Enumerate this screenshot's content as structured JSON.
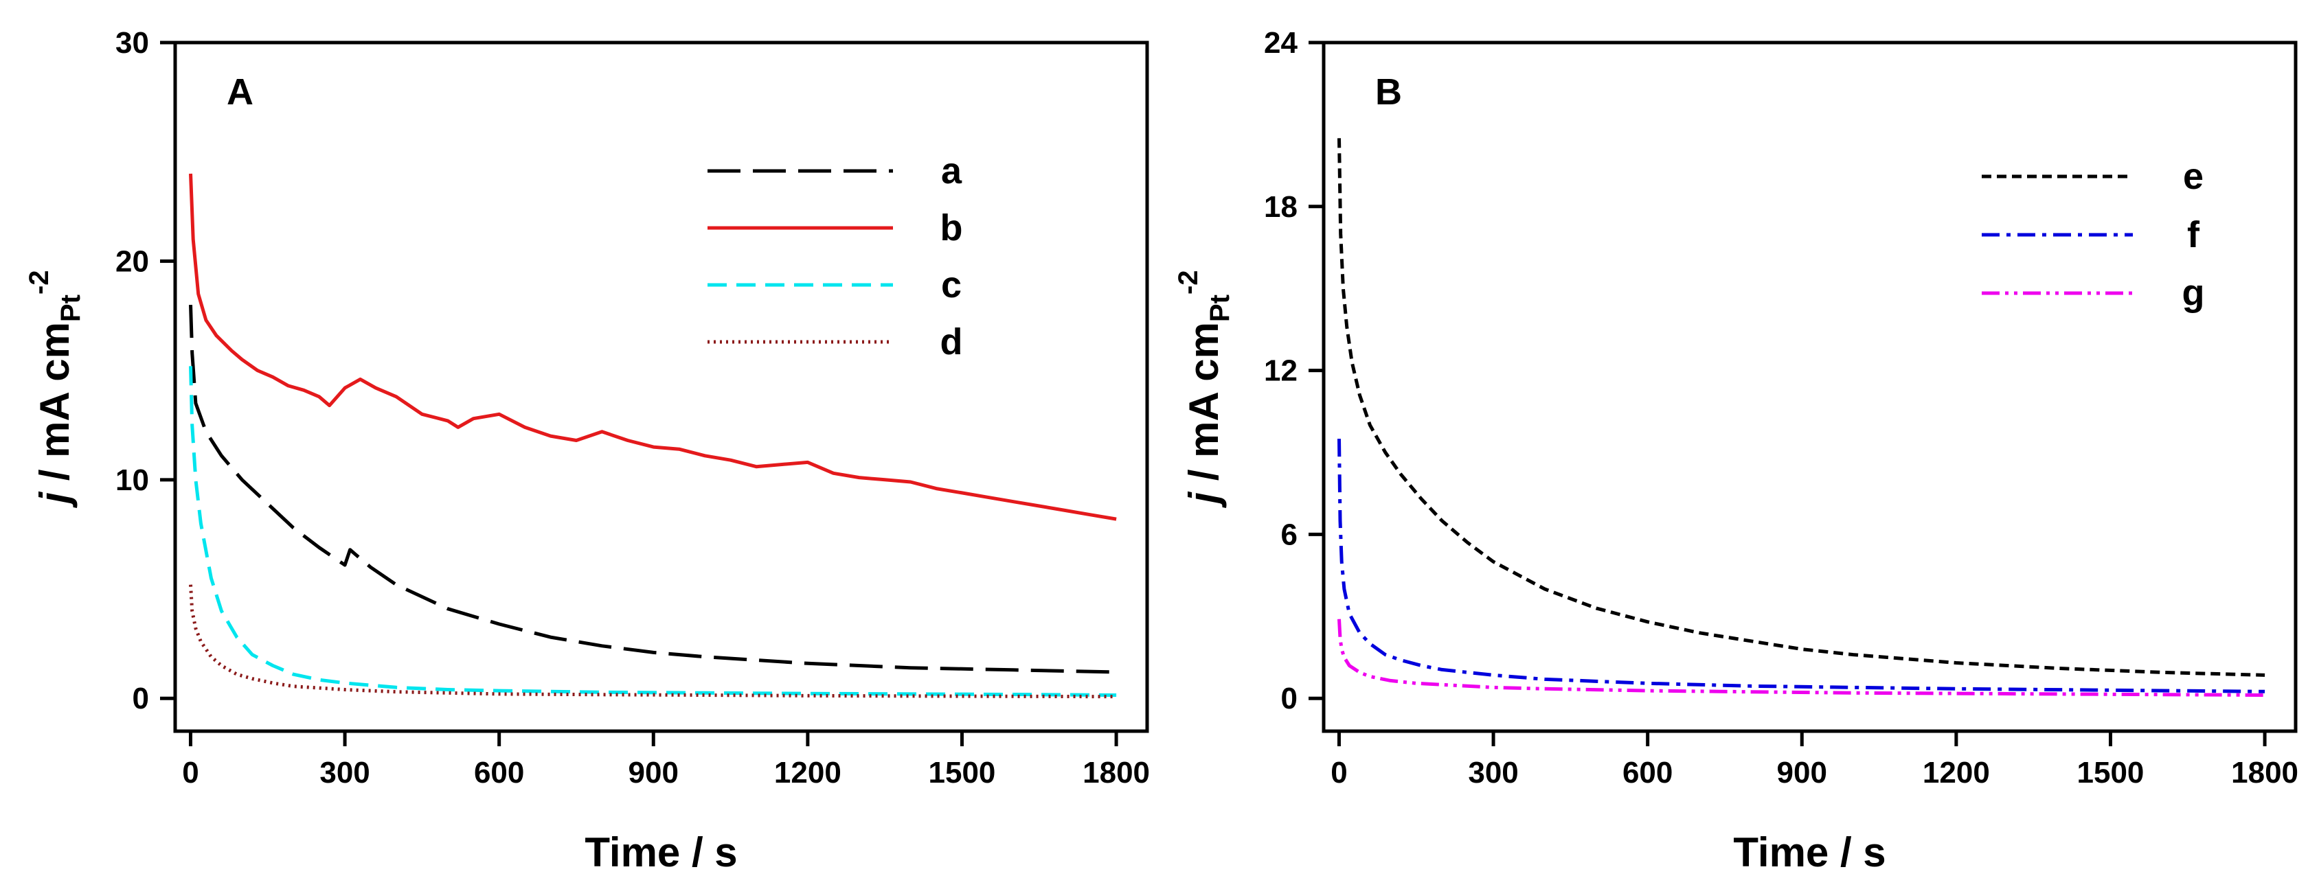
{
  "chart_data": [
    {
      "type": "line",
      "panel_label": "A",
      "xlabel": "Time / s",
      "ylabel": {
        "italic": "j",
        "text": " / mA cm",
        "sub": "Pt",
        "sup": "-2"
      },
      "xlim": [
        -30,
        1860
      ],
      "ylim": [
        -1.5,
        30
      ],
      "xticks": [
        0,
        300,
        600,
        900,
        1200,
        1500,
        1800
      ],
      "yticks": [
        0,
        10,
        20,
        30
      ],
      "xtick_labels": [
        "0",
        "300",
        "600",
        "900",
        "1200",
        "1500",
        "1800"
      ],
      "ytick_labels": [
        "0",
        "10",
        "20",
        "30"
      ],
      "legend_position": "top-right",
      "series": [
        {
          "name": "a",
          "color": "#000000",
          "dash": "long-dash",
          "x": [
            0,
            3,
            10,
            30,
            60,
            100,
            150,
            200,
            250,
            300,
            310,
            320,
            350,
            400,
            500,
            600,
            700,
            800,
            900,
            1000,
            1200,
            1400,
            1600,
            1800
          ],
          "y": [
            18,
            15.8,
            13.5,
            12.2,
            11.1,
            10.0,
            8.9,
            7.8,
            6.9,
            6.1,
            6.8,
            6.6,
            6.0,
            5.2,
            4.1,
            3.4,
            2.8,
            2.4,
            2.1,
            1.9,
            1.6,
            1.4,
            1.3,
            1.2
          ]
        },
        {
          "name": "b",
          "color": "#e41a1c",
          "dash": "solid",
          "x": [
            0,
            5,
            15,
            30,
            50,
            80,
            100,
            130,
            160,
            190,
            220,
            250,
            270,
            300,
            330,
            360,
            400,
            450,
            500,
            520,
            550,
            600,
            650,
            700,
            750,
            800,
            850,
            900,
            950,
            1000,
            1050,
            1100,
            1150,
            1200,
            1250,
            1300,
            1350,
            1400,
            1450,
            1500,
            1550,
            1600,
            1650,
            1700,
            1750,
            1800
          ],
          "y": [
            24,
            21,
            18.5,
            17.3,
            16.6,
            15.9,
            15.5,
            15.0,
            14.7,
            14.3,
            14.1,
            13.8,
            13.4,
            14.2,
            14.6,
            14.2,
            13.8,
            13.0,
            12.7,
            12.4,
            12.8,
            13.0,
            12.4,
            12.0,
            11.8,
            12.2,
            11.8,
            11.5,
            11.4,
            11.1,
            10.9,
            10.6,
            10.7,
            10.8,
            10.3,
            10.1,
            10.0,
            9.9,
            9.6,
            9.4,
            9.2,
            9.0,
            8.8,
            8.6,
            8.4,
            8.2
          ]
        },
        {
          "name": "c",
          "color": "#00e5ee",
          "dash": "dash",
          "x": [
            0,
            3,
            10,
            20,
            40,
            60,
            90,
            120,
            160,
            200,
            250,
            300,
            400,
            500,
            600,
            800,
            1000,
            1200,
            1400,
            1600,
            1800
          ],
          "y": [
            15.2,
            12.5,
            10.0,
            8.0,
            5.5,
            4.0,
            2.8,
            2.0,
            1.5,
            1.1,
            0.85,
            0.7,
            0.5,
            0.4,
            0.35,
            0.28,
            0.25,
            0.22,
            0.2,
            0.18,
            0.15
          ]
        },
        {
          "name": "d",
          "color": "#8b1a1a",
          "dash": "dot",
          "x": [
            0,
            3,
            10,
            20,
            40,
            60,
            90,
            120,
            160,
            200,
            300,
            400,
            600,
            800,
            1000,
            1200,
            1500,
            1800
          ],
          "y": [
            5.2,
            4.0,
            3.2,
            2.6,
            1.9,
            1.5,
            1.1,
            0.9,
            0.7,
            0.55,
            0.4,
            0.3,
            0.2,
            0.17,
            0.15,
            0.12,
            0.1,
            0.08
          ]
        }
      ]
    },
    {
      "type": "line",
      "panel_label": "B",
      "xlabel": "Time / s",
      "ylabel": {
        "italic": "j",
        "text": " / mA cm",
        "sub": "Pt",
        "sup": "-2"
      },
      "xlim": [
        -30,
        1860
      ],
      "ylim": [
        -1.2,
        24
      ],
      "xticks": [
        0,
        300,
        600,
        900,
        1200,
        1500,
        1800
      ],
      "yticks": [
        0,
        6,
        12,
        18,
        24
      ],
      "xtick_labels": [
        "0",
        "300",
        "600",
        "900",
        "1200",
        "1500",
        "1800"
      ],
      "ytick_labels": [
        "0",
        "6",
        "12",
        "18",
        "24"
      ],
      "legend_position": "top-right",
      "series": [
        {
          "name": "e",
          "color": "#000000",
          "dash": "short-dash",
          "x": [
            0,
            3,
            8,
            15,
            25,
            40,
            60,
            90,
            120,
            160,
            200,
            250,
            300,
            400,
            500,
            600,
            700,
            800,
            900,
            1000,
            1200,
            1400,
            1600,
            1800
          ],
          "y": [
            20.5,
            17.0,
            15.0,
            13.6,
            12.3,
            11.1,
            10.0,
            9.0,
            8.2,
            7.3,
            6.5,
            5.7,
            5.0,
            4.0,
            3.3,
            2.8,
            2.4,
            2.1,
            1.8,
            1.6,
            1.3,
            1.1,
            0.95,
            0.85
          ]
        },
        {
          "name": "f",
          "color": "#0000dd",
          "dash": "dash-dot",
          "x": [
            0,
            2,
            5,
            10,
            20,
            40,
            60,
            90,
            120,
            160,
            200,
            300,
            400,
            600,
            800,
            1000,
            1200,
            1500,
            1800
          ],
          "y": [
            9.5,
            6.5,
            5.0,
            4.0,
            3.1,
            2.4,
            2.0,
            1.6,
            1.4,
            1.2,
            1.05,
            0.85,
            0.7,
            0.55,
            0.45,
            0.4,
            0.35,
            0.3,
            0.25
          ]
        },
        {
          "name": "g",
          "color": "#ee00ee",
          "dash": "dash-dot-dot",
          "x": [
            0,
            2,
            5,
            10,
            20,
            40,
            60,
            100,
            150,
            200,
            300,
            400,
            600,
            800,
            1000,
            1200,
            1500,
            1800
          ],
          "y": [
            2.9,
            2.2,
            1.8,
            1.5,
            1.2,
            0.95,
            0.8,
            0.65,
            0.55,
            0.5,
            0.4,
            0.35,
            0.28,
            0.24,
            0.2,
            0.18,
            0.15,
            0.12
          ]
        }
      ]
    }
  ]
}
